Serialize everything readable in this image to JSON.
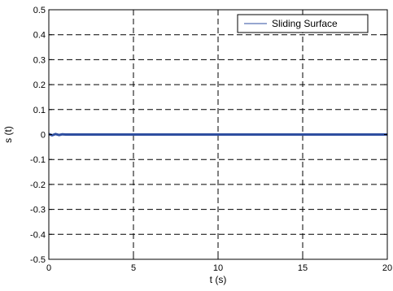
{
  "chart_data": {
    "type": "line",
    "title": "",
    "xlabel": "t (s)",
    "ylabel": "s (t)",
    "xlim": [
      0,
      20
    ],
    "ylim": [
      -0.5,
      0.5
    ],
    "xticks": [
      "0",
      "5",
      "10",
      "15",
      "20"
    ],
    "yticks": [
      "0.5",
      "0.4",
      "0.3",
      "0.2",
      "0.1",
      "0",
      "-0.1",
      "-0.2",
      "-0.3",
      "-0.4",
      "-0.5"
    ],
    "grid": true,
    "legend": "top-right",
    "series": [
      {
        "name": "Sliding Surface",
        "color": "#2e4ea0",
        "x": [
          0,
          0.2,
          0.4,
          0.6,
          0.8,
          1,
          2,
          3,
          4,
          5,
          6,
          7,
          8,
          9,
          10,
          11,
          12,
          13,
          14,
          15,
          16,
          17,
          18,
          19,
          20
        ],
        "y": [
          0.002,
          -0.003,
          0.002,
          -0.002,
          0.001,
          0,
          0,
          0,
          0,
          0,
          0,
          0,
          0,
          0,
          0,
          0,
          0,
          0,
          0,
          0,
          0,
          0,
          0,
          0,
          0
        ]
      }
    ]
  }
}
